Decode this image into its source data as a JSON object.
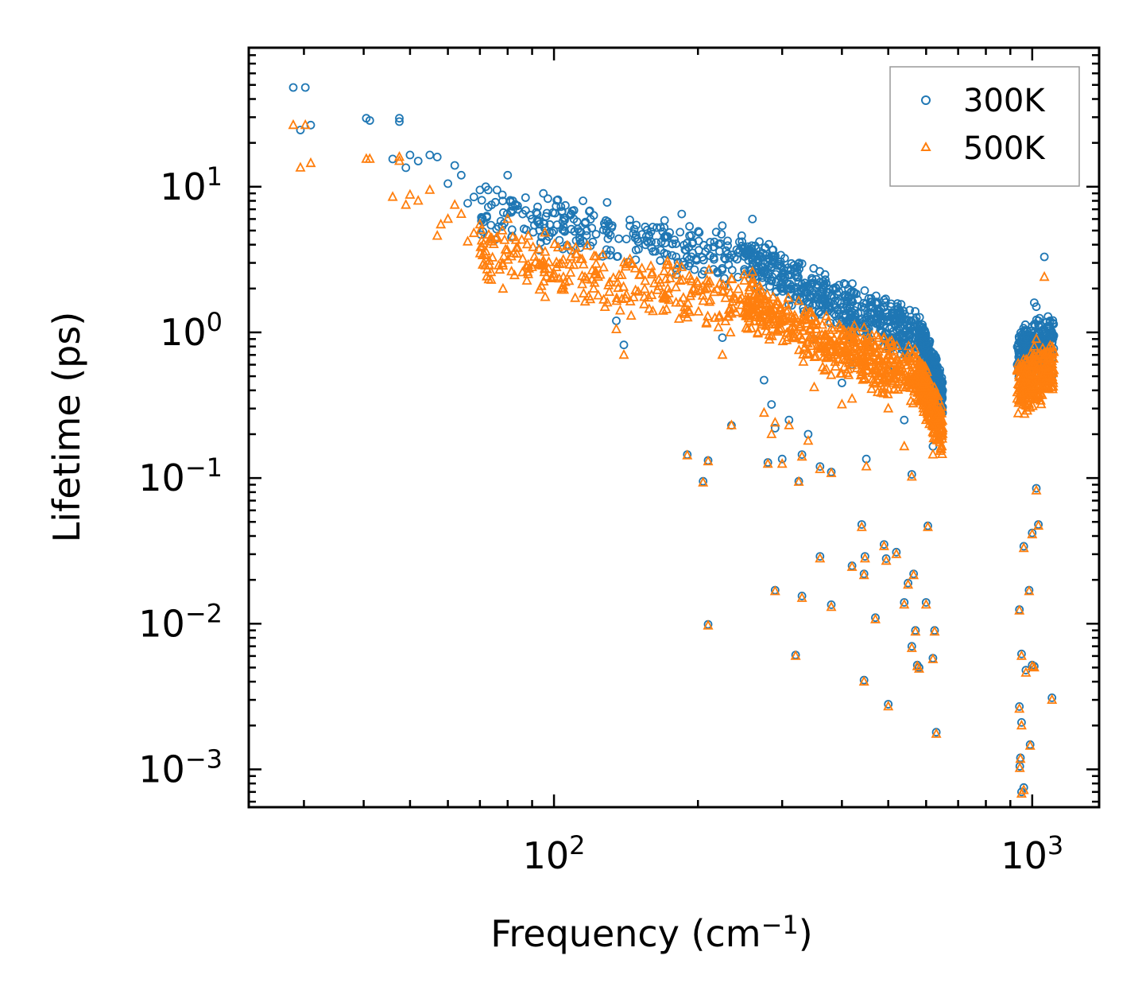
{
  "chart_data": {
    "type": "scatter",
    "xscale": "log",
    "yscale": "log",
    "xlabel": "Frequency (cm",
    "xlabel_exp": "−1",
    "xlabel_close": ")",
    "ylabel": "Lifetime (ps)",
    "xlim": [
      23,
      1380
    ],
    "ylim": [
      0.00055,
      90
    ],
    "x_ticks": [
      {
        "value": 100,
        "base": "10",
        "exp": "2"
      },
      {
        "value": 1000,
        "base": "10",
        "exp": "3"
      }
    ],
    "y_ticks": [
      {
        "value": 10,
        "base": "10",
        "exp": "1"
      },
      {
        "value": 1,
        "base": "10",
        "exp": "0"
      },
      {
        "value": 0.1,
        "base": "10",
        "exp": "−1"
      },
      {
        "value": 0.01,
        "base": "10",
        "exp": "−2"
      },
      {
        "value": 0.001,
        "base": "10",
        "exp": "−3"
      }
    ],
    "legend_position": "top-right",
    "series": [
      {
        "name": "300K",
        "marker": "circle",
        "color": "#1f77b4",
        "points": [
          [
            28.5,
            48
          ],
          [
            29.5,
            24.5
          ],
          [
            30.2,
            48
          ],
          [
            31,
            26.5
          ],
          [
            40.5,
            29.5
          ],
          [
            41.2,
            28.5
          ],
          [
            46,
            15.5
          ],
          [
            47.5,
            29.5
          ],
          [
            47.5,
            28
          ],
          [
            49,
            13.5
          ],
          [
            50,
            16.5
          ],
          [
            52,
            15
          ],
          [
            55,
            16.5
          ],
          [
            57,
            16
          ],
          [
            60,
            10.5
          ],
          [
            62,
            14
          ],
          [
            64,
            12
          ],
          [
            66,
            7.7
          ],
          [
            68,
            8.5
          ],
          [
            70,
            9.5
          ],
          [
            72,
            10
          ],
          [
            74,
            7.5
          ],
          [
            76,
            9.5
          ],
          [
            78,
            8.8
          ],
          [
            80,
            12
          ],
          [
            82,
            8
          ],
          [
            84,
            7
          ],
          [
            86,
            6.5
          ],
          [
            90,
            6
          ],
          [
            95,
            9
          ],
          [
            98,
            5.5
          ],
          [
            104,
            6.8
          ],
          [
            110,
            6
          ],
          [
            115,
            8
          ],
          [
            120,
            5.2
          ],
          [
            130,
            4.8
          ],
          [
            135,
            1.2
          ],
          [
            140,
            0.82
          ],
          [
            150,
            4.2
          ],
          [
            160,
            3.8
          ],
          [
            170,
            3.5
          ],
          [
            180,
            3.3
          ],
          [
            185,
            6.5
          ],
          [
            190,
            0.145
          ],
          [
            205,
            0.095
          ],
          [
            210,
            0.132
          ],
          [
            225,
            0.92
          ],
          [
            235,
            0.23
          ],
          [
            260,
            6
          ],
          [
            275,
            0.47
          ],
          [
            280,
            0.128
          ],
          [
            285,
            0.32
          ],
          [
            290,
            0.22
          ],
          [
            300,
            0.135
          ],
          [
            310,
            0.25
          ],
          [
            325,
            0.095
          ],
          [
            330,
            0.145
          ],
          [
            340,
            0.2
          ],
          [
            350,
            0.9
          ],
          [
            360,
            0.12
          ],
          [
            380,
            0.11
          ],
          [
            400,
            0.45
          ],
          [
            420,
            0.6
          ],
          [
            430,
            1.5
          ],
          [
            450,
            0.135
          ],
          [
            480,
            1.4
          ],
          [
            500,
            0.55
          ],
          [
            540,
            0.25
          ],
          [
            560,
            0.106
          ],
          [
            600,
            0.5
          ],
          [
            620,
            0.165
          ],
          [
            650,
            0.4
          ],
          [
            930,
            0.6
          ],
          [
            940,
            0.7
          ],
          [
            950,
            0.65
          ],
          [
            960,
            0.9
          ],
          [
            970,
            0.55
          ],
          [
            980,
            0.75
          ],
          [
            1000,
            1.1
          ],
          [
            1010,
            1.6
          ],
          [
            1020,
            1.5
          ],
          [
            1030,
            1.2
          ],
          [
            1040,
            0.6
          ],
          [
            1050,
            0.8
          ],
          [
            1060,
            3.3
          ],
          [
            1070,
            0.9
          ],
          [
            1080,
            1.1
          ],
          [
            1090,
            1.2
          ],
          [
            1100,
            0.5
          ],
          [
            1110,
            0.95
          ],
          [
            1020,
            0.085
          ],
          [
            1030,
            0.048
          ],
          [
            1000,
            0.042
          ],
          [
            960,
            0.034
          ],
          [
            940,
            0.0125
          ],
          [
            985,
            0.017
          ],
          [
            950,
            0.0062
          ],
          [
            970,
            0.0048
          ],
          [
            1000,
            0.0052
          ],
          [
            1010,
            0.0051
          ],
          [
            940,
            0.0027
          ],
          [
            950,
            0.0021
          ],
          [
            945,
            0.0012
          ],
          [
            942,
            0.00105
          ],
          [
            990,
            0.00148
          ],
          [
            950,
            0.0007
          ],
          [
            960,
            0.00075
          ],
          [
            1100,
            0.0031
          ],
          [
            210,
            0.0099
          ],
          [
            290,
            0.017
          ],
          [
            320,
            0.0061
          ],
          [
            330,
            0.0155
          ],
          [
            360,
            0.029
          ],
          [
            380,
            0.0135
          ],
          [
            420,
            0.025
          ],
          [
            440,
            0.048
          ],
          [
            445,
            0.022
          ],
          [
            447,
            0.029
          ],
          [
            445,
            0.0041
          ],
          [
            470,
            0.011
          ],
          [
            490,
            0.035
          ],
          [
            495,
            0.028
          ],
          [
            500,
            0.0028
          ],
          [
            520,
            0.031
          ],
          [
            540,
            0.014
          ],
          [
            550,
            0.019
          ],
          [
            560,
            0.007
          ],
          [
            565,
            0.022
          ],
          [
            570,
            0.009
          ],
          [
            575,
            0.0052
          ],
          [
            580,
            0.005
          ],
          [
            600,
            0.014
          ],
          [
            605,
            0.047
          ],
          [
            620,
            0.0058
          ],
          [
            625,
            0.009
          ],
          [
            630,
            0.0018
          ]
        ],
        "bands": [
          {
            "x_from": 70,
            "x_to": 250,
            "y_from": 7,
            "y_to": 3.2,
            "spread": 0.22
          },
          {
            "x_from": 250,
            "x_to": 400,
            "y_from": 3.3,
            "y_to": 1.5,
            "spread": 0.2
          },
          {
            "x_from": 400,
            "x_to": 580,
            "y_from": 1.5,
            "y_to": 0.95,
            "spread": 0.2
          },
          {
            "x_from": 580,
            "x_to": 650,
            "y_from": 0.95,
            "y_to": 0.35,
            "spread": 0.18
          },
          {
            "x_from": 930,
            "x_to": 1110,
            "y_from": 0.7,
            "y_to": 0.9,
            "spread": 0.2
          }
        ]
      },
      {
        "name": "500K",
        "marker": "triangle",
        "color": "#ff7f0e",
        "points": [
          [
            28.5,
            26.5
          ],
          [
            29.5,
            13.5
          ],
          [
            30.2,
            26.5
          ],
          [
            31,
            14.5
          ],
          [
            40.5,
            15.5
          ],
          [
            41.2,
            15.5
          ],
          [
            46,
            8.5
          ],
          [
            47.5,
            16
          ],
          [
            47.5,
            15
          ],
          [
            49,
            7.5
          ],
          [
            50,
            8.8
          ],
          [
            52,
            8
          ],
          [
            55,
            9.5
          ],
          [
            57,
            4.6
          ],
          [
            58,
            5.5
          ],
          [
            60,
            6
          ],
          [
            62,
            7.5
          ],
          [
            64,
            6.5
          ],
          [
            66,
            4.2
          ],
          [
            68,
            4.8
          ],
          [
            70,
            5.5
          ],
          [
            72,
            3.6
          ],
          [
            74,
            4.2
          ],
          [
            76,
            4.5
          ],
          [
            78,
            5
          ],
          [
            80,
            6
          ],
          [
            82,
            4.5
          ],
          [
            84,
            3.8
          ],
          [
            86,
            3.2
          ],
          [
            88,
            2.6
          ],
          [
            90,
            2.8
          ],
          [
            95,
            3.1
          ],
          [
            100,
            2.4
          ],
          [
            110,
            2.9
          ],
          [
            120,
            2.3
          ],
          [
            130,
            2.1
          ],
          [
            135,
            1.05
          ],
          [
            140,
            0.7
          ],
          [
            145,
            1.3
          ],
          [
            150,
            1.9
          ],
          [
            160,
            1.8
          ],
          [
            170,
            1.7
          ],
          [
            180,
            1.6
          ],
          [
            185,
            2.8
          ],
          [
            190,
            0.143
          ],
          [
            205,
            0.093
          ],
          [
            210,
            0.13
          ],
          [
            225,
            0.7
          ],
          [
            235,
            0.23
          ],
          [
            260,
            2.6
          ],
          [
            275,
            0.28
          ],
          [
            280,
            0.125
          ],
          [
            285,
            0.2
          ],
          [
            290,
            0.24
          ],
          [
            300,
            0.125
          ],
          [
            310,
            0.23
          ],
          [
            325,
            0.094
          ],
          [
            330,
            0.14
          ],
          [
            340,
            0.18
          ],
          [
            350,
            0.42
          ],
          [
            360,
            0.115
          ],
          [
            380,
            0.108
          ],
          [
            400,
            0.32
          ],
          [
            420,
            0.35
          ],
          [
            430,
            0.68
          ],
          [
            450,
            0.12
          ],
          [
            480,
            0.55
          ],
          [
            500,
            0.3
          ],
          [
            540,
            0.165
          ],
          [
            560,
            0.102
          ],
          [
            600,
            0.25
          ],
          [
            620,
            0.145
          ],
          [
            650,
            0.22
          ],
          [
            930,
            0.35
          ],
          [
            940,
            0.4
          ],
          [
            950,
            0.38
          ],
          [
            960,
            0.5
          ],
          [
            970,
            0.35
          ],
          [
            980,
            0.45
          ],
          [
            1000,
            0.6
          ],
          [
            1010,
            0.8
          ],
          [
            1020,
            0.9
          ],
          [
            1030,
            0.7
          ],
          [
            1040,
            0.38
          ],
          [
            1050,
            0.5
          ],
          [
            1060,
            2.4
          ],
          [
            1070,
            0.5
          ],
          [
            1080,
            0.55
          ],
          [
            1090,
            0.65
          ],
          [
            1100,
            0.42
          ],
          [
            1110,
            0.55
          ],
          [
            1020,
            0.082
          ],
          [
            1030,
            0.047
          ],
          [
            1000,
            0.041
          ],
          [
            960,
            0.033
          ],
          [
            940,
            0.0123
          ],
          [
            985,
            0.0167
          ],
          [
            950,
            0.006
          ],
          [
            970,
            0.0046
          ],
          [
            1000,
            0.0051
          ],
          [
            1010,
            0.005
          ],
          [
            940,
            0.0026
          ],
          [
            950,
            0.002
          ],
          [
            945,
            0.00118
          ],
          [
            942,
            0.00102
          ],
          [
            990,
            0.00145
          ],
          [
            950,
            0.00068
          ],
          [
            960,
            0.00072
          ],
          [
            1100,
            0.003
          ],
          [
            210,
            0.0097
          ],
          [
            290,
            0.0167
          ],
          [
            320,
            0.006
          ],
          [
            330,
            0.015
          ],
          [
            360,
            0.028
          ],
          [
            380,
            0.013
          ],
          [
            420,
            0.0245
          ],
          [
            440,
            0.046
          ],
          [
            445,
            0.0215
          ],
          [
            447,
            0.028
          ],
          [
            445,
            0.004
          ],
          [
            470,
            0.0107
          ],
          [
            490,
            0.034
          ],
          [
            495,
            0.027
          ],
          [
            500,
            0.0027
          ],
          [
            520,
            0.03
          ],
          [
            540,
            0.0135
          ],
          [
            550,
            0.0185
          ],
          [
            560,
            0.0068
          ],
          [
            565,
            0.0215
          ],
          [
            570,
            0.0088
          ],
          [
            575,
            0.0051
          ],
          [
            580,
            0.0049
          ],
          [
            600,
            0.0135
          ],
          [
            605,
            0.046
          ],
          [
            620,
            0.0057
          ],
          [
            625,
            0.0088
          ],
          [
            630,
            0.00175
          ]
        ],
        "bands": [
          {
            "x_from": 70,
            "x_to": 250,
            "y_from": 3.5,
            "y_to": 1.6,
            "spread": 0.25
          },
          {
            "x_from": 250,
            "x_to": 400,
            "y_from": 1.6,
            "y_to": 0.75,
            "spread": 0.22
          },
          {
            "x_from": 400,
            "x_to": 580,
            "y_from": 0.75,
            "y_to": 0.5,
            "spread": 0.22
          },
          {
            "x_from": 580,
            "x_to": 650,
            "y_from": 0.5,
            "y_to": 0.2,
            "spread": 0.2
          },
          {
            "x_from": 930,
            "x_to": 1110,
            "y_from": 0.42,
            "y_to": 0.55,
            "spread": 0.22
          }
        ]
      }
    ]
  }
}
